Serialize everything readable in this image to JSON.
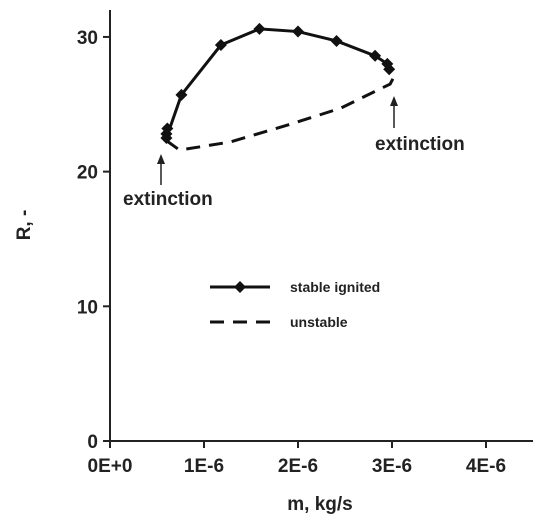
{
  "chart_data": {
    "type": "line",
    "xlabel": "m, kg/s",
    "ylabel": "R, -",
    "xlim": [
      0,
      4.5e-06
    ],
    "ylim": [
      0,
      32
    ],
    "xticks": [
      {
        "value": 0,
        "label": "0E+0"
      },
      {
        "value": 1e-06,
        "label": "1E-6"
      },
      {
        "value": 2e-06,
        "label": "2E-6"
      },
      {
        "value": 3e-06,
        "label": "3E-6"
      },
      {
        "value": 4e-06,
        "label": "4E-6"
      }
    ],
    "yticks": [
      0,
      10,
      20,
      30
    ],
    "annotations": [
      "extinction",
      "extinction"
    ],
    "series": [
      {
        "name": "stable ignited",
        "color": "#111111",
        "style": "solid",
        "marker": "diamond",
        "x": [
          6.1e-07,
          6e-07,
          6e-07,
          7.6e-07,
          1.18e-06,
          1.59e-06,
          2e-06,
          2.41e-06,
          2.82e-06,
          2.95e-06,
          2.97e-06
        ],
        "values": [
          23.2,
          22.8,
          22.5,
          25.7,
          29.4,
          30.6,
          30.4,
          29.7,
          28.6,
          28.0,
          27.6
        ]
      },
      {
        "name": "unstable",
        "color": "#111111",
        "style": "dashed",
        "x": [
          6e-07,
          7.4e-07,
          1.28e-06,
          1.91e-06,
          2.45e-06,
          2.98e-06,
          3.01e-06
        ],
        "values": [
          22.3,
          21.6,
          22.2,
          23.5,
          24.7,
          26.5,
          26.9
        ]
      }
    ]
  }
}
